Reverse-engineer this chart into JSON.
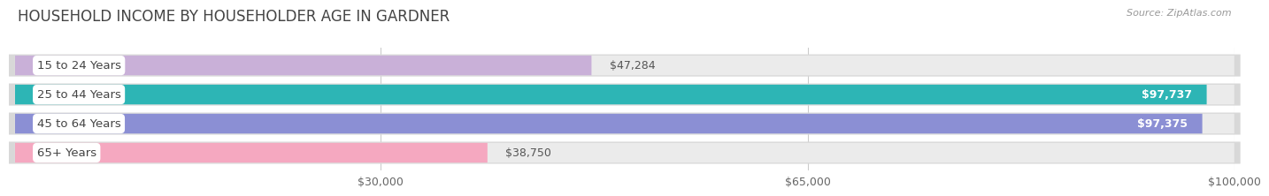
{
  "title": "HOUSEHOLD INCOME BY HOUSEHOLDER AGE IN GARDNER",
  "source": "Source: ZipAtlas.com",
  "categories": [
    "15 to 24 Years",
    "25 to 44 Years",
    "45 to 64 Years",
    "65+ Years"
  ],
  "values": [
    47284,
    97737,
    97375,
    38750
  ],
  "bar_colors": [
    "#c9b0d8",
    "#2db5b5",
    "#8b8fd4",
    "#f5a8c0"
  ],
  "label_colors": [
    "#555555",
    "#ffffff",
    "#ffffff",
    "#555555"
  ],
  "value_labels": [
    "$47,284",
    "$97,737",
    "$97,375",
    "$38,750"
  ],
  "bg_color": "#ffffff",
  "bar_bg_color": "#ebebeb",
  "bar_border_color": "#dddddd",
  "xmax": 100000,
  "xticks": [
    30000,
    65000,
    100000
  ],
  "xtick_labels": [
    "$30,000",
    "$65,000",
    "$100,000"
  ],
  "title_color": "#444444",
  "source_color": "#999999"
}
